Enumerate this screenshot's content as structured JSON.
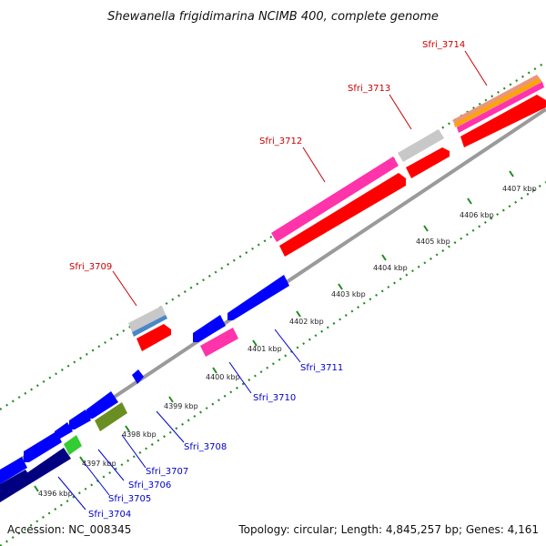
{
  "title": "Shewanella frigidimarina NCIMB 400, complete genome",
  "footer": {
    "accession": "Accession: NC_008345",
    "topology": "Topology: circular; Length: 4,845,257 bp; Genes: 4,161"
  },
  "colors": {
    "backbone": "#8a8a8a",
    "tick_dots": "#228b22",
    "label_forward": "#cc0000",
    "label_reverse": "#0000cc",
    "cds_forward": "#ff0000",
    "cds_reverse": "#0000ff",
    "pink": "#ff33aa",
    "grey": "#c8c8c8",
    "steelblue": "#4a86c8",
    "olive": "#6b8e23",
    "lightgreen": "#33cc33",
    "navy": "#000080",
    "orange": "#ffa500",
    "salmon": "#e9967a"
  },
  "ticks": [
    {
      "label": "4396 kbp"
    },
    {
      "label": "4397 kbp"
    },
    {
      "label": "4398 kbp"
    },
    {
      "label": "4399 kbp"
    },
    {
      "label": "4400 kbp"
    },
    {
      "label": "4401 kbp"
    },
    {
      "label": "4402 kbp"
    },
    {
      "label": "4403 kbp"
    },
    {
      "label": "4404 kbp"
    },
    {
      "label": "4405 kbp"
    },
    {
      "label": "4406 kbp"
    },
    {
      "label": "4407 kbp"
    }
  ],
  "gene_labels": [
    {
      "label": "Sfri_3714",
      "strand": "forward"
    },
    {
      "label": "Sfri_3713",
      "strand": "forward"
    },
    {
      "label": "Sfri_3712",
      "strand": "forward"
    },
    {
      "label": "Sfri_3709",
      "strand": "forward"
    },
    {
      "label": "Sfri_3711",
      "strand": "reverse"
    },
    {
      "label": "Sfri_3710",
      "strand": "reverse"
    },
    {
      "label": "Sfri_3708",
      "strand": "reverse"
    },
    {
      "label": "Sfri_3707",
      "strand": "reverse"
    },
    {
      "label": "Sfri_3706",
      "strand": "reverse"
    },
    {
      "label": "Sfri_3705",
      "strand": "reverse"
    },
    {
      "label": "Sfri_3704",
      "strand": "reverse"
    }
  ]
}
